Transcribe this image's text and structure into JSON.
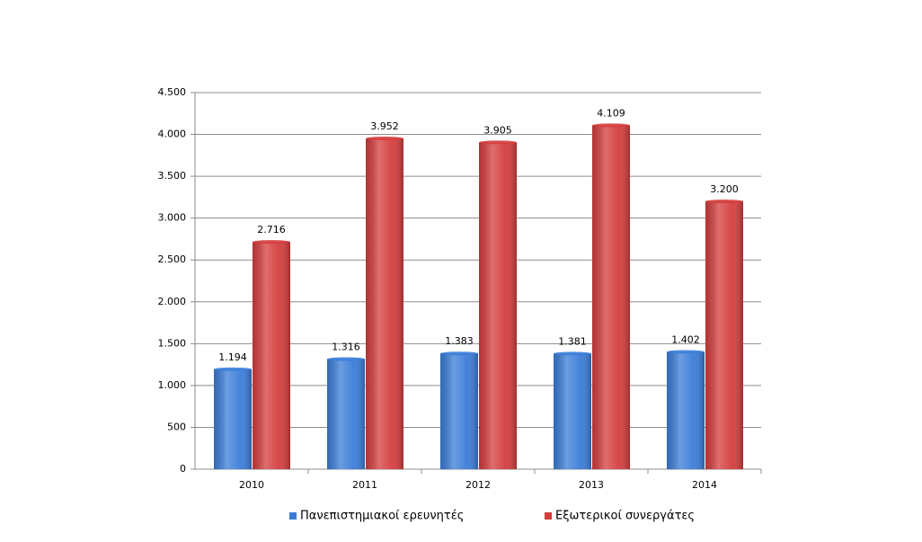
{
  "chart_data": {
    "type": "bar",
    "categories": [
      "2010",
      "2011",
      "2012",
      "2013",
      "2014"
    ],
    "series": [
      {
        "name": "Πανεπιστημιακοί ερευνητές",
        "color": "#3b7dd8",
        "values": [
          1194,
          1316,
          1383,
          1381,
          1402
        ],
        "value_labels": [
          "1.194",
          "1.316",
          "1.383",
          "1.381",
          "1.402"
        ]
      },
      {
        "name": "Εξωτερικοί συνεργάτες",
        "color": "#d43d3d",
        "values": [
          2716,
          3952,
          3905,
          4109,
          3200
        ],
        "value_labels": [
          "2.716",
          "3.952",
          "3.905",
          "4.109",
          "3.200"
        ]
      }
    ],
    "ylim": [
      0,
      4500
    ],
    "yticks": [
      0,
      500,
      {
        "value": 1000,
        "label": "1.000"
      },
      {
        "value": 1500,
        "label": "1.500"
      },
      {
        "value": 2000,
        "label": "2.000"
      },
      {
        "value": 2500,
        "label": "2.500"
      },
      {
        "value": 3000,
        "label": "3.000"
      },
      {
        "value": 3500,
        "label": "3.500"
      },
      {
        "value": 4000,
        "label": "4.000"
      },
      {
        "value": 4500,
        "label": "4.500"
      }
    ],
    "grid": true,
    "legend": "bottom"
  }
}
